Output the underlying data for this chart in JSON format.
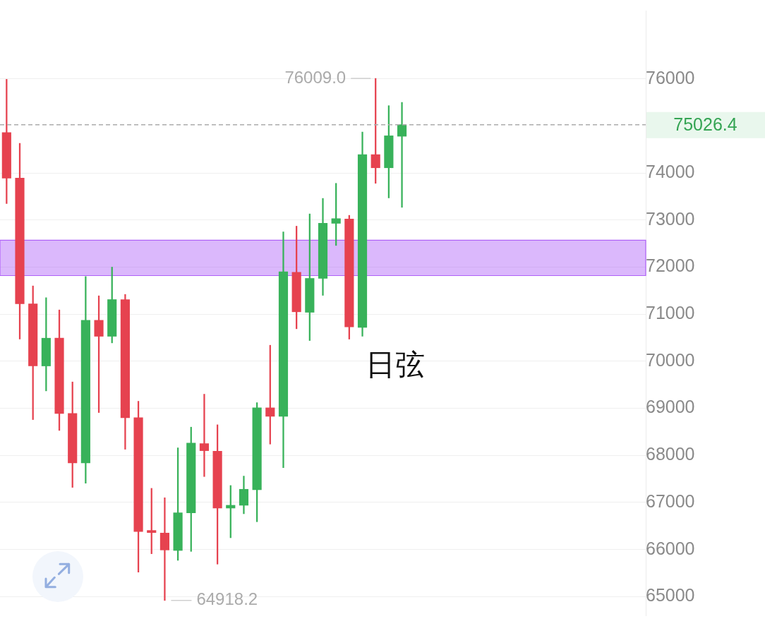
{
  "chart_data": {
    "type": "candlestick",
    "categories": [
      null,
      null,
      null,
      null,
      null,
      null,
      null,
      null,
      null,
      null,
      null,
      null,
      null,
      null,
      null,
      null,
      null,
      null,
      null,
      null,
      null,
      null,
      null,
      null,
      null,
      null,
      null,
      null,
      null,
      null,
      null,
      null,
      null,
      null,
      null,
      null,
      null,
      null,
      null,
      null,
      null,
      null,
      null,
      null,
      null,
      null,
      null,
      null,
      null
    ],
    "ohlc": [
      [
        74860,
        75990,
        73350,
        73890
      ],
      [
        73890,
        74630,
        70470,
        71220
      ],
      [
        71220,
        71600,
        68760,
        69900
      ],
      [
        69900,
        71350,
        69370,
        70490
      ],
      [
        70490,
        71090,
        68530,
        68890
      ],
      [
        68890,
        69560,
        67320,
        67840
      ],
      [
        67840,
        71800,
        67410,
        70870
      ],
      [
        70870,
        71390,
        68910,
        70530
      ],
      [
        70530,
        72000,
        70390,
        71310
      ],
      [
        71310,
        71420,
        68130,
        68800
      ],
      [
        68800,
        69150,
        65520,
        66380
      ],
      [
        66380,
        67300,
        65910,
        66360
      ],
      [
        66350,
        67100,
        64918.2,
        65990
      ],
      [
        65980,
        68160,
        65770,
        66780
      ],
      [
        66780,
        68600,
        65960,
        68260
      ],
      [
        68250,
        69300,
        67550,
        68100
      ],
      [
        68090,
        68650,
        65690,
        66880
      ],
      [
        66880,
        67360,
        66250,
        66940
      ],
      [
        66940,
        67560,
        66760,
        67280
      ],
      [
        67270,
        69120,
        66590,
        69010
      ],
      [
        69010,
        70340,
        68240,
        68830
      ],
      [
        68830,
        72750,
        67740,
        71900
      ],
      [
        71890,
        72870,
        70690,
        71050
      ],
      [
        71040,
        73130,
        70440,
        71760
      ],
      [
        71760,
        73460,
        71400,
        72930
      ],
      [
        72930,
        73780,
        72460,
        73030
      ],
      [
        73020,
        73100,
        70470,
        70730
      ],
      [
        70720,
        74870,
        70530,
        74390
      ],
      [
        74390,
        76009.0,
        73780,
        74110
      ],
      [
        74110,
        75430,
        73470,
        74790
      ],
      [
        74780,
        75500,
        73270,
        75026.4
      ],
      null,
      null,
      null,
      null,
      null,
      null,
      null,
      null,
      null,
      null,
      null,
      null,
      null,
      null,
      null,
      null,
      null,
      null
    ],
    "colors": [
      "#e6424f",
      "#e6424f",
      "#e6424f",
      "#38b25a",
      "#e6424f",
      "#e6424f",
      "#38b25a",
      "#e6424f",
      "#38b25a",
      "#e6424f",
      "#e6424f",
      "#e6424f",
      "#e6424f",
      "#38b25a",
      "#38b25a",
      "#e6424f",
      "#e6424f",
      "#38b25a",
      "#38b25a",
      "#38b25a",
      "#e6424f",
      "#38b25a",
      "#e6424f",
      "#38b25a",
      "#38b25a",
      "#38b25a",
      "#e6424f",
      "#38b25a",
      "#e6424f",
      "#38b25a",
      "#38b25a",
      null,
      null,
      null,
      null,
      null,
      null,
      null,
      null,
      null,
      null,
      null,
      null,
      null,
      null,
      null,
      null,
      null,
      null
    ],
    "ylim": [
      64600,
      77450
    ],
    "yticks": [
      65000,
      66000,
      67000,
      68000,
      69000,
      70000,
      71000,
      72000,
      73000,
      74000,
      76000
    ],
    "grid": "y",
    "tick_labels": "y",
    "bands": [
      {
        "axis": "y",
        "from": 71820,
        "to": 72570,
        "color": "#af61f8"
      }
    ],
    "ref_lines": [
      {
        "axis": "y",
        "value": 75026.4,
        "label": "75026.4",
        "color": "#ababab",
        "line_style": "dashed"
      }
    ],
    "annotations": [
      "76009.0",
      "64918.2",
      "日弦"
    ]
  }
}
